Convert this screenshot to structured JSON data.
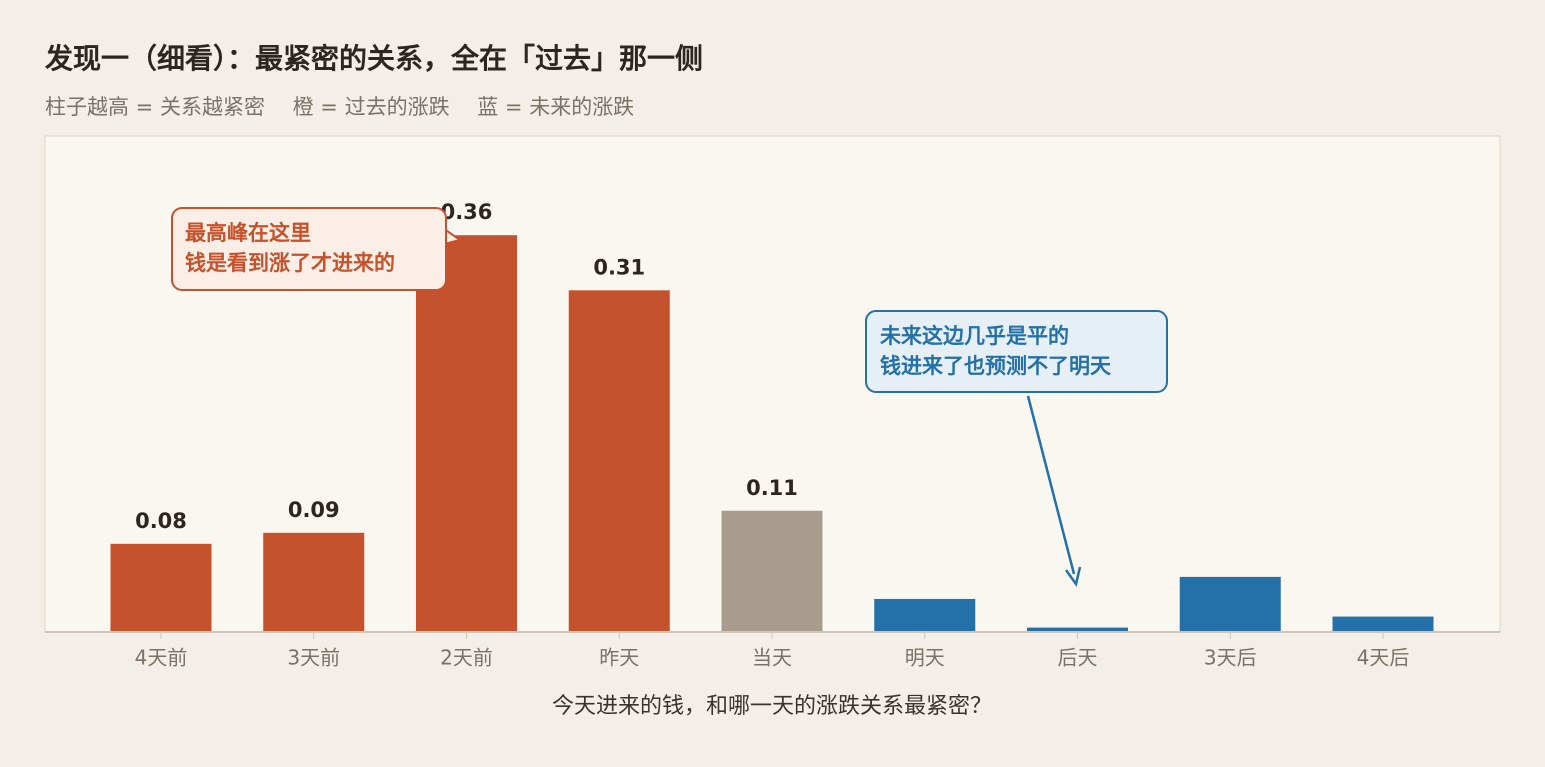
{
  "chart_data": {
    "type": "bar",
    "title": "发现一（细看）：最紧密的关系，全在「过去」那一侧",
    "subtitle": "柱子越高 = 关系越紧密　 橙 = 过去的涨跌　 蓝 = 未来的涨跌",
    "x_label": "今天进来的钱，和哪一天的涨跌关系最紧密？",
    "categories": [
      "4天前",
      "3天前",
      "2天前",
      "昨天",
      "当天",
      "明天",
      "后天",
      "3天后",
      "4天后"
    ],
    "values": [
      0.08,
      0.09,
      0.36,
      0.31,
      0.11,
      0.03,
      0.004,
      0.05,
      0.014
    ],
    "value_labels": [
      "0.08",
      "0.09",
      "0.36",
      "0.31",
      "0.11",
      null,
      null,
      null,
      null
    ],
    "colors": [
      "#c4532d",
      "#c4532d",
      "#c4532d",
      "#c4532d",
      "#a89d8d",
      "#2470a8",
      "#2470a8",
      "#2470a8",
      "#2470a8"
    ],
    "ylim": [
      0,
      0.45
    ],
    "annotations": [
      {
        "lines": [
          "最高峰在这里",
          "钱是看到涨了才进来的"
        ],
        "color": "#c4532d"
      },
      {
        "lines": [
          "未来这边几乎是平的",
          "钱进来了也预测不了明天"
        ],
        "color": "#2470a8"
      }
    ]
  }
}
